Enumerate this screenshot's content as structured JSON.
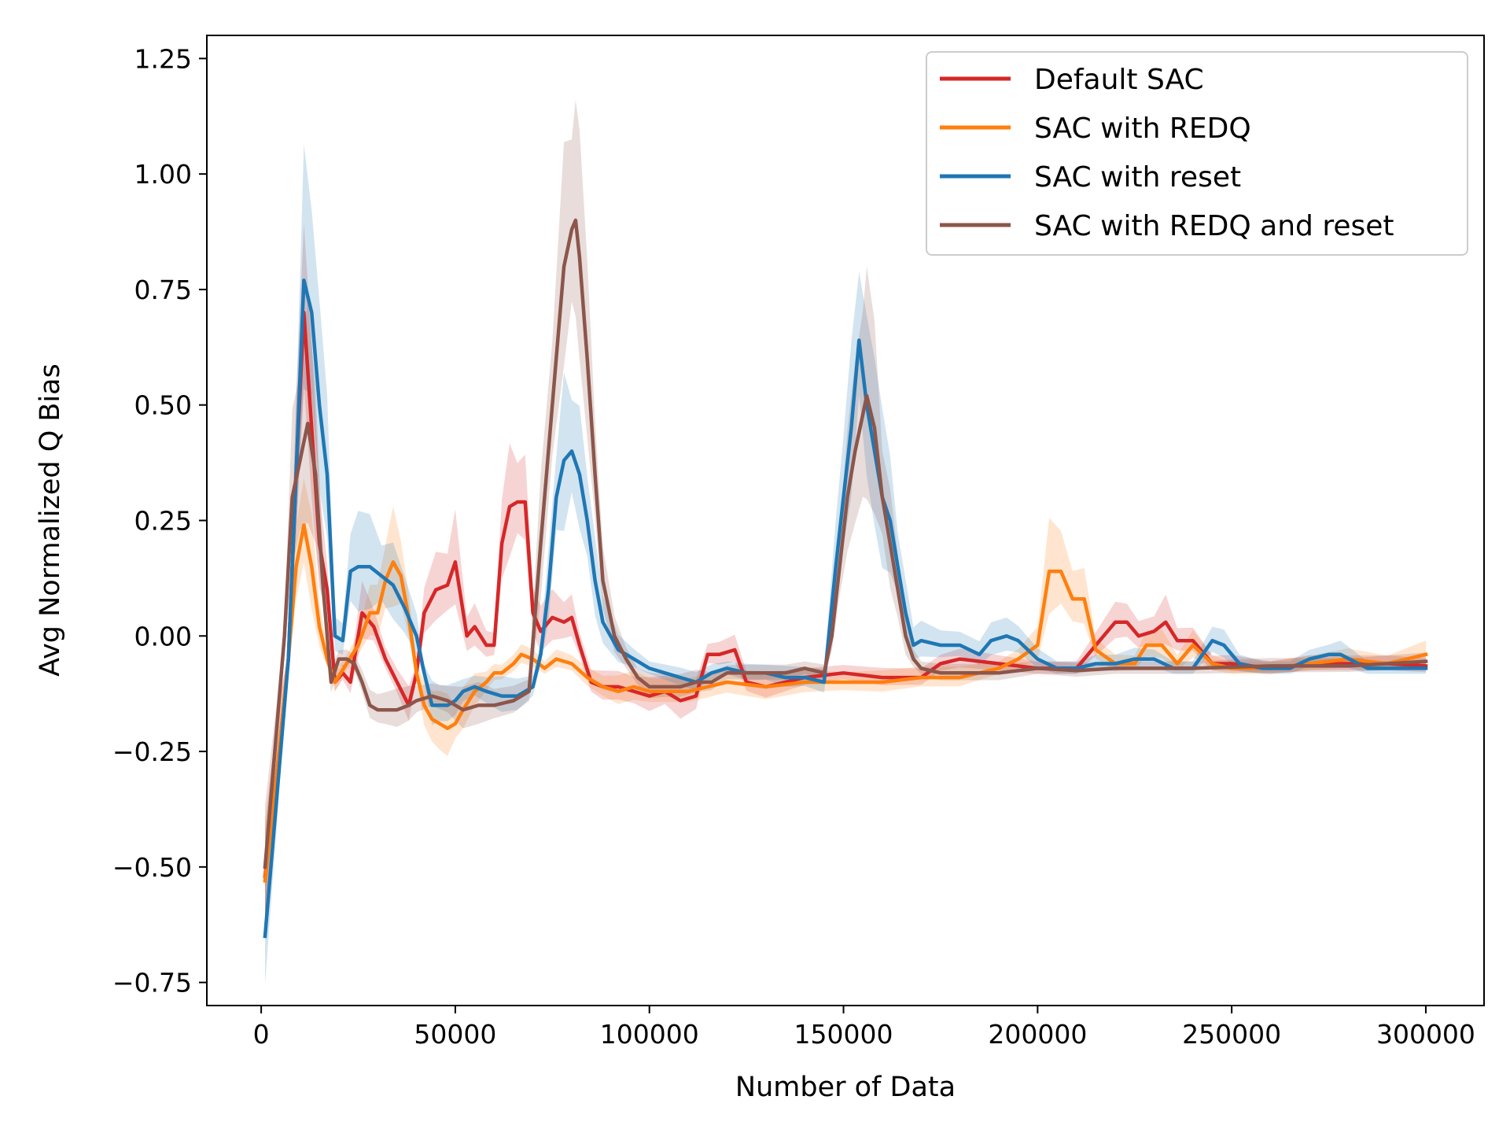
{
  "chart_data": {
    "type": "line",
    "title": "",
    "xlabel": "Number of Data",
    "ylabel": "Avg Normalized Q Bias",
    "xlim": [
      -14000,
      315000
    ],
    "ylim": [
      -0.8,
      1.3
    ],
    "x_ticks": [
      0,
      50000,
      100000,
      150000,
      200000,
      250000,
      300000
    ],
    "x_tick_labels": [
      "0",
      "50000",
      "100000",
      "150000",
      "200000",
      "250000",
      "300000"
    ],
    "y_ticks": [
      -0.75,
      -0.5,
      -0.25,
      0.0,
      0.25,
      0.5,
      0.75,
      1.0,
      1.25
    ],
    "y_tick_labels": [
      "−0.75",
      "−0.50",
      "−0.25",
      "0.00",
      "0.25",
      "0.50",
      "0.75",
      "1.00",
      "1.25"
    ],
    "grid": false,
    "legend_position": "top-right",
    "series": [
      {
        "name": "Default SAC",
        "color": "#d62728",
        "x": [
          1000,
          4000,
          7000,
          9000,
          11000,
          13000,
          15000,
          17000,
          19000,
          21000,
          23000,
          26000,
          29000,
          32000,
          35000,
          38000,
          40000,
          42000,
          45000,
          48000,
          50000,
          53000,
          55000,
          58000,
          60000,
          62000,
          64000,
          66000,
          68000,
          70000,
          72000,
          75000,
          78000,
          80000,
          82000,
          85000,
          88000,
          92000,
          96000,
          100000,
          104000,
          108000,
          112000,
          115000,
          118000,
          122000,
          125000,
          130000,
          140000,
          150000,
          160000,
          170000,
          175000,
          180000,
          190000,
          200000,
          210000,
          215000,
          220000,
          223000,
          226000,
          230000,
          233000,
          236000,
          240000,
          245000,
          250000,
          260000,
          270000,
          280000,
          290000,
          300000
        ],
        "values": [
          -0.52,
          -0.3,
          -0.05,
          0.35,
          0.7,
          0.45,
          0.2,
          0.1,
          -0.1,
          -0.08,
          -0.1,
          0.05,
          0.02,
          -0.05,
          -0.1,
          -0.15,
          -0.08,
          0.05,
          0.1,
          0.11,
          0.16,
          0.0,
          0.02,
          -0.02,
          -0.02,
          0.2,
          0.28,
          0.29,
          0.29,
          0.05,
          0.01,
          0.04,
          0.03,
          0.04,
          -0.02,
          -0.1,
          -0.11,
          -0.11,
          -0.12,
          -0.13,
          -0.12,
          -0.14,
          -0.13,
          -0.04,
          -0.04,
          -0.03,
          -0.1,
          -0.11,
          -0.09,
          -0.08,
          -0.09,
          -0.09,
          -0.06,
          -0.05,
          -0.06,
          -0.07,
          -0.07,
          -0.02,
          0.03,
          0.03,
          0.0,
          0.01,
          0.03,
          -0.01,
          -0.01,
          -0.06,
          -0.06,
          -0.07,
          -0.06,
          -0.06,
          -0.06,
          -0.065
        ]
      },
      {
        "name": "SAC with REDQ",
        "color": "#ff7f0e",
        "x": [
          1000,
          4000,
          7000,
          9000,
          11000,
          13000,
          15000,
          17000,
          19000,
          22000,
          25000,
          28000,
          30000,
          32000,
          34000,
          36000,
          38000,
          40000,
          42000,
          44000,
          46000,
          48000,
          50000,
          52000,
          55000,
          58000,
          60000,
          62000,
          65000,
          67000,
          70000,
          73000,
          76000,
          80000,
          84000,
          88000,
          92000,
          96000,
          100000,
          110000,
          120000,
          130000,
          140000,
          150000,
          160000,
          170000,
          180000,
          190000,
          195000,
          200000,
          203000,
          206000,
          209000,
          212000,
          215000,
          220000,
          225000,
          228000,
          232000,
          236000,
          240000,
          245000,
          250000,
          260000,
          270000,
          280000,
          290000,
          300000
        ],
        "values": [
          -0.53,
          -0.3,
          -0.05,
          0.15,
          0.24,
          0.15,
          0.02,
          -0.05,
          -0.1,
          -0.06,
          -0.02,
          0.05,
          0.05,
          0.12,
          0.16,
          0.13,
          0.04,
          -0.08,
          -0.15,
          -0.18,
          -0.19,
          -0.2,
          -0.19,
          -0.16,
          -0.12,
          -0.1,
          -0.08,
          -0.08,
          -0.06,
          -0.04,
          -0.05,
          -0.07,
          -0.05,
          -0.06,
          -0.09,
          -0.11,
          -0.12,
          -0.11,
          -0.12,
          -0.12,
          -0.1,
          -0.11,
          -0.1,
          -0.1,
          -0.1,
          -0.09,
          -0.09,
          -0.07,
          -0.05,
          -0.02,
          0.14,
          0.14,
          0.08,
          0.08,
          -0.03,
          -0.06,
          -0.06,
          -0.02,
          -0.02,
          -0.06,
          -0.02,
          -0.06,
          -0.07,
          -0.07,
          -0.06,
          -0.05,
          -0.06,
          -0.04
        ]
      },
      {
        "name": "SAC with reset",
        "color": "#1f77b4",
        "x": [
          1000,
          4000,
          7000,
          9000,
          11000,
          13000,
          15000,
          17000,
          19000,
          21000,
          23000,
          25000,
          28000,
          31000,
          34000,
          37000,
          40000,
          42000,
          44000,
          46000,
          48000,
          50000,
          52000,
          55000,
          58000,
          62000,
          66000,
          70000,
          72000,
          74000,
          76000,
          78000,
          80000,
          82000,
          84000,
          86000,
          88000,
          92000,
          96000,
          100000,
          104000,
          108000,
          112000,
          116000,
          120000,
          125000,
          130000,
          135000,
          140000,
          145000,
          148000,
          150000,
          152000,
          154000,
          156000,
          158000,
          160000,
          162000,
          164000,
          166000,
          168000,
          170000,
          175000,
          180000,
          185000,
          188000,
          192000,
          195000,
          200000,
          205000,
          210000,
          215000,
          220000,
          225000,
          230000,
          235000,
          240000,
          245000,
          248000,
          252000,
          258000,
          265000,
          270000,
          275000,
          278000,
          285000,
          290000,
          300000
        ],
        "values": [
          -0.65,
          -0.35,
          -0.05,
          0.35,
          0.77,
          0.7,
          0.5,
          0.35,
          0.0,
          -0.01,
          0.14,
          0.15,
          0.15,
          0.13,
          0.11,
          0.06,
          0.0,
          -0.08,
          -0.15,
          -0.15,
          -0.15,
          -0.14,
          -0.12,
          -0.11,
          -0.12,
          -0.13,
          -0.13,
          -0.11,
          -0.04,
          0.1,
          0.3,
          0.38,
          0.4,
          0.35,
          0.25,
          0.12,
          0.03,
          -0.03,
          -0.05,
          -0.07,
          -0.08,
          -0.09,
          -0.1,
          -0.08,
          -0.07,
          -0.08,
          -0.08,
          -0.09,
          -0.09,
          -0.1,
          0.15,
          0.3,
          0.45,
          0.64,
          0.5,
          0.4,
          0.3,
          0.25,
          0.15,
          0.05,
          -0.02,
          -0.01,
          -0.02,
          -0.02,
          -0.04,
          -0.01,
          0.0,
          -0.01,
          -0.05,
          -0.07,
          -0.07,
          -0.06,
          -0.06,
          -0.05,
          -0.05,
          -0.07,
          -0.07,
          -0.01,
          -0.02,
          -0.06,
          -0.07,
          -0.07,
          -0.05,
          -0.04,
          -0.04,
          -0.07,
          -0.07,
          -0.07
        ]
      },
      {
        "name": "SAC with REDQ and reset",
        "color": "#8c564b",
        "x": [
          1000,
          4000,
          6000,
          8000,
          10000,
          12000,
          14000,
          16000,
          18000,
          20000,
          22000,
          24000,
          26000,
          28000,
          30000,
          32000,
          35000,
          38000,
          40000,
          44000,
          48000,
          52000,
          56000,
          60000,
          65000,
          69000,
          72000,
          75000,
          78000,
          80000,
          81000,
          82000,
          84000,
          86000,
          88000,
          91000,
          94000,
          97000,
          100000,
          104000,
          108000,
          112000,
          116000,
          120000,
          125000,
          130000,
          135000,
          140000,
          145000,
          147000,
          149000,
          151000,
          153000,
          155000,
          156000,
          158000,
          160000,
          162000,
          164000,
          166000,
          168000,
          170000,
          175000,
          180000,
          190000,
          200000,
          210000,
          220000,
          240000,
          260000,
          280000,
          300000
        ],
        "values": [
          -0.5,
          -0.2,
          0.0,
          0.3,
          0.38,
          0.46,
          0.35,
          0.1,
          -0.1,
          -0.05,
          -0.05,
          -0.06,
          -0.1,
          -0.15,
          -0.16,
          -0.16,
          -0.16,
          -0.15,
          -0.14,
          -0.13,
          -0.14,
          -0.16,
          -0.15,
          -0.15,
          -0.14,
          -0.12,
          0.2,
          0.5,
          0.8,
          0.88,
          0.9,
          0.82,
          0.6,
          0.35,
          0.12,
          0.0,
          -0.05,
          -0.09,
          -0.11,
          -0.11,
          -0.11,
          -0.1,
          -0.1,
          -0.08,
          -0.08,
          -0.08,
          -0.08,
          -0.07,
          -0.08,
          0.0,
          0.15,
          0.3,
          0.4,
          0.48,
          0.52,
          0.45,
          0.3,
          0.2,
          0.1,
          0.0,
          -0.05,
          -0.07,
          -0.08,
          -0.08,
          -0.08,
          -0.07,
          -0.075,
          -0.07,
          -0.07,
          -0.065,
          -0.065,
          -0.055
        ]
      }
    ]
  }
}
